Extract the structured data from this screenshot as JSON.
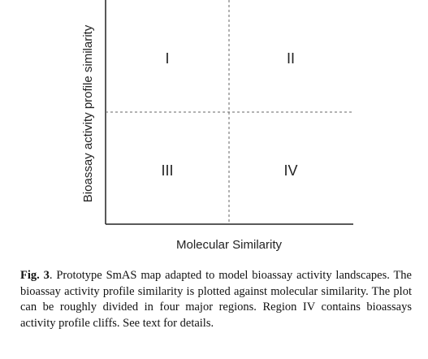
{
  "figure": {
    "y_label": "Bioassay activity profile similarity",
    "x_label": "Molecular Similarity",
    "regions": [
      "I",
      "II",
      "III",
      "IV"
    ]
  },
  "caption": {
    "label": "Fig. 3",
    "text": ". Prototype SmAS map adapted to model bioassay activity landscapes. The bioassay activity profile similarity is plotted against molecular similarity. The plot can be roughly divided in four major regions. Region IV contains bioassays activity profile cliffs. See text for details."
  }
}
